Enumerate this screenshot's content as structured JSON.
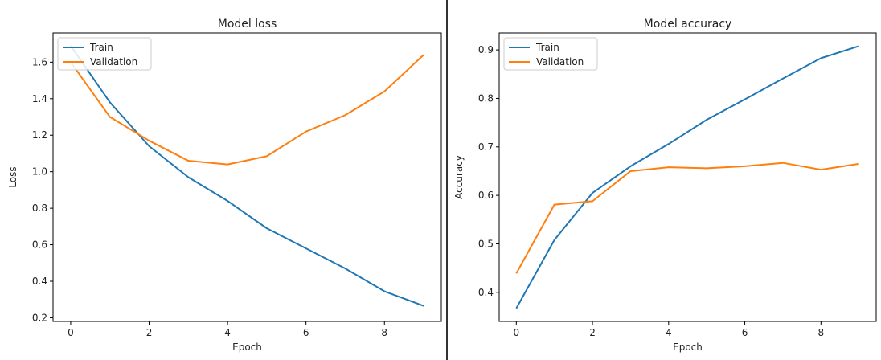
{
  "chart_data": [
    {
      "type": "line",
      "title": "Model loss",
      "xlabel": "Epoch",
      "ylabel": "Loss",
      "x": [
        0,
        1,
        2,
        3,
        4,
        5,
        6,
        7,
        8,
        9
      ],
      "xlim": [
        -0.45,
        9.45
      ],
      "ylim": [
        0.18,
        1.76
      ],
      "xticks": [
        0,
        2,
        4,
        6,
        8
      ],
      "yticks": [
        0.2,
        0.4,
        0.6,
        0.8,
        1.0,
        1.2,
        1.4,
        1.6
      ],
      "ytick_labels": [
        "0.2",
        "0.4",
        "0.6",
        "0.8",
        "1.0",
        "1.2",
        "1.4",
        "1.6"
      ],
      "grid": false,
      "legend": "top-left",
      "series": [
        {
          "name": "Train",
          "color": "#1f77b4",
          "values": [
            1.69,
            1.38,
            1.14,
            0.97,
            0.84,
            0.69,
            0.58,
            0.47,
            0.345,
            0.265
          ]
        },
        {
          "name": "Validation",
          "color": "#ff7f0e",
          "values": [
            1.6,
            1.3,
            1.17,
            1.06,
            1.04,
            1.085,
            1.22,
            1.31,
            1.44,
            1.64
          ]
        }
      ]
    },
    {
      "type": "line",
      "title": "Model accuracy",
      "xlabel": "Epoch",
      "ylabel": "Accuracy",
      "x": [
        0,
        1,
        2,
        3,
        4,
        5,
        6,
        7,
        8,
        9
      ],
      "xlim": [
        -0.45,
        9.45
      ],
      "ylim": [
        0.34,
        0.935
      ],
      "xticks": [
        0,
        2,
        4,
        6,
        8
      ],
      "yticks": [
        0.4,
        0.5,
        0.6,
        0.7,
        0.8,
        0.9
      ],
      "ytick_labels": [
        "0.4",
        "0.5",
        "0.6",
        "0.7",
        "0.8",
        "0.9"
      ],
      "grid": false,
      "legend": "top-left",
      "series": [
        {
          "name": "Train",
          "color": "#1f77b4",
          "values": [
            0.367,
            0.508,
            0.605,
            0.66,
            0.706,
            0.756,
            0.798,
            0.841,
            0.883,
            0.908
          ]
        },
        {
          "name": "Validation",
          "color": "#ff7f0e",
          "values": [
            0.439,
            0.581,
            0.588,
            0.65,
            0.658,
            0.656,
            0.66,
            0.667,
            0.653,
            0.665
          ]
        }
      ]
    }
  ]
}
